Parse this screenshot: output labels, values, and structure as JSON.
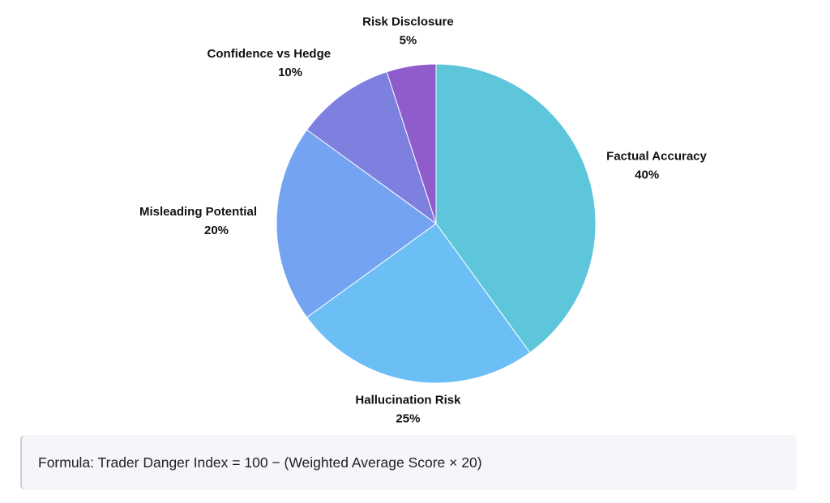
{
  "chart_data": {
    "type": "pie",
    "title": "",
    "slices": [
      {
        "label": "Factual Accuracy",
        "value": 40,
        "percent_label": "40%",
        "color": "#5ec6da"
      },
      {
        "label": "Hallucination Risk",
        "value": 25,
        "percent_label": "25%",
        "color": "#6bbff5"
      },
      {
        "label": "Misleading Potential",
        "value": 20,
        "percent_label": "20%",
        "color": "#74a3f2"
      },
      {
        "label": "Confidence vs Hedge",
        "value": 10,
        "percent_label": "10%",
        "color": "#7d80de"
      },
      {
        "label": "Risk Disclosure",
        "value": 5,
        "percent_label": "5%",
        "color": "#8e5ccb"
      }
    ],
    "start_angle": "top",
    "direction": "clockwise",
    "legend": "none"
  },
  "formula": {
    "text": "Formula: Trader Danger Index = 100 − (Weighted Average Score × 20)"
  }
}
